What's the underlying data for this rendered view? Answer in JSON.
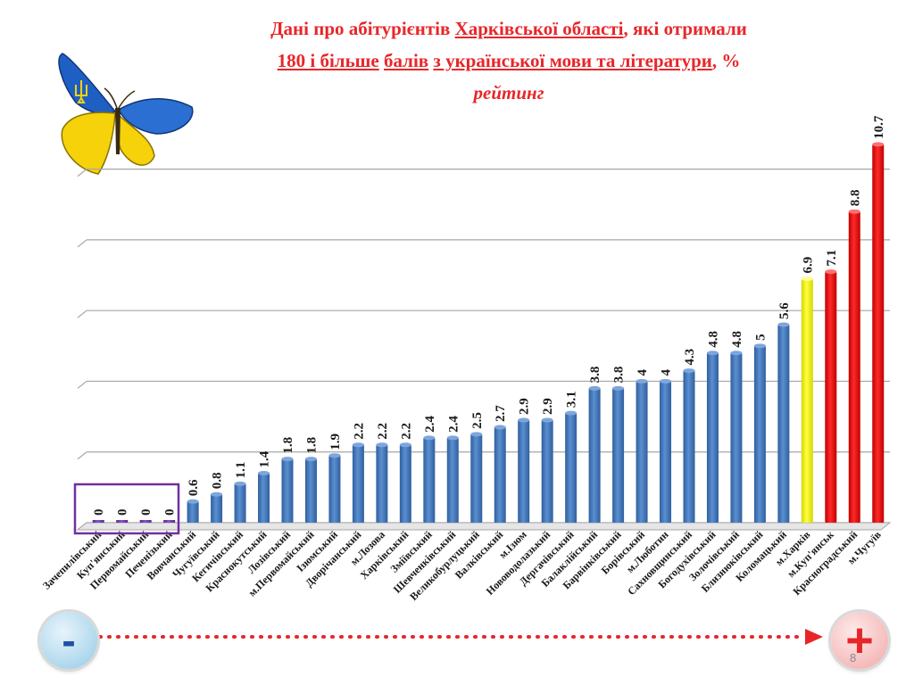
{
  "title": {
    "line1_a": "Дані про абітурієнтів ",
    "line1_b": "Харківської  області",
    "line1_c": ", які отримали",
    "line2_a": "180 і більше",
    "line2_b": "балів",
    "line2_c": "з української мови та літератури",
    "line2_d": ", %",
    "line3": "рейтинг"
  },
  "page_number": "8",
  "direction": {
    "minus": "-",
    "plus": "+"
  },
  "colors": {
    "title": "#e8262a",
    "bar_blue": "#4f81bd",
    "bar_yellow": "#ffff00",
    "bar_red": "#ff0000",
    "highlight_box": "#7030a0",
    "arrow": "#e8262a"
  },
  "chart_data": {
    "type": "bar",
    "y_min": 0,
    "y_max": 11,
    "grid": true,
    "categories": [
      "Зачепилівський",
      "Куп'янський",
      "Первомайський",
      "Печенізький",
      "Вовчанський",
      "Чугуївський",
      "Кегичівський",
      "Краснокутський",
      "Лозівський",
      "м.Первомайський",
      "Ізюмський",
      "Дворічанський",
      "м.Лозова",
      "Харківський",
      "Зміївський",
      "Шевченківський",
      "Великобурлуцький",
      "Валківський",
      "м.Ізюм",
      "Нововодолазький",
      "Дергачівський",
      "Балаклійський",
      "Барвінківський",
      "Борівський",
      "м.Люботин",
      "Сахновщинський",
      "Богодухівський",
      "Золочівський",
      "Близнюківський",
      "Коломацький",
      "м.Харків",
      "м.Куп'янськ",
      "Красноградський",
      "м.Чугуїв"
    ],
    "values": [
      0,
      0,
      0,
      0,
      0.6,
      0.8,
      1.1,
      1.4,
      1.8,
      1.8,
      1.9,
      2.2,
      2.2,
      2.2,
      2.4,
      2.4,
      2.5,
      2.7,
      2.9,
      2.9,
      3.1,
      3.8,
      3.8,
      4,
      4,
      4.3,
      4.8,
      4.8,
      5,
      5.6,
      6.9,
      7.1,
      8.8,
      10.7
    ],
    "value_labels": [
      "0",
      "0",
      "0",
      "0",
      "0.6",
      "0.8",
      "1.1",
      "1.4",
      "1.8",
      "1.8",
      "1.9",
      "2.2",
      "2.2",
      "2.2",
      "2.4",
      "2.4",
      "2.5",
      "2.7",
      "2.9",
      "2.9",
      "3.1",
      "3.8",
      "3.8",
      "4",
      "4",
      "4.3",
      "4.8",
      "4.8",
      "5",
      "5.6",
      "6.9",
      "7.1",
      "8.8",
      "10.7"
    ],
    "bar_colors": [
      "purple",
      "purple",
      "purple",
      "purple",
      "blue",
      "blue",
      "blue",
      "blue",
      "blue",
      "blue",
      "blue",
      "blue",
      "blue",
      "blue",
      "blue",
      "blue",
      "blue",
      "blue",
      "blue",
      "blue",
      "blue",
      "blue",
      "blue",
      "blue",
      "blue",
      "blue",
      "blue",
      "blue",
      "blue",
      "blue",
      "yellow",
      "red",
      "red",
      "red"
    ],
    "highlighted_categories": [
      "Зачепилівський",
      "Куп'янський",
      "Первомайський",
      "Печенізький"
    ]
  }
}
